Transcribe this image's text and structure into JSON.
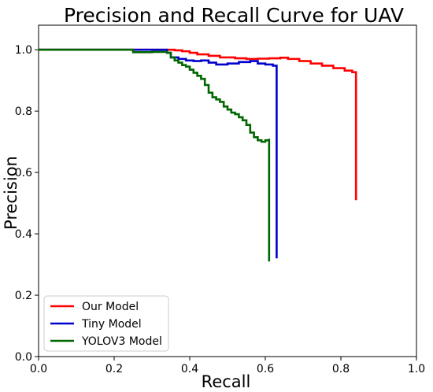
{
  "chart_data": {
    "type": "line",
    "title": "Precision and Recall Curve for UAV",
    "xlabel": "Recall",
    "ylabel": "Precision",
    "xlim": [
      0.0,
      1.0
    ],
    "ylim": [
      0.0,
      1.08
    ],
    "xticks": [
      "0.0",
      "0.2",
      "0.4",
      "0.6",
      "0.8",
      "1.0"
    ],
    "yticks": [
      "0.0",
      "0.2",
      "0.4",
      "0.6",
      "0.8",
      "1.0"
    ],
    "grid": false,
    "legend_position": "lower-left",
    "series": [
      {
        "name": "Our Model",
        "color": "#ff0000",
        "x": [
          0.0,
          0.2,
          0.34,
          0.36,
          0.38,
          0.4,
          0.42,
          0.45,
          0.48,
          0.52,
          0.55,
          0.58,
          0.61,
          0.64,
          0.66,
          0.69,
          0.72,
          0.75,
          0.78,
          0.81,
          0.83,
          0.84,
          0.84
        ],
        "y": [
          1.0,
          1.0,
          1.0,
          0.998,
          0.995,
          0.99,
          0.985,
          0.98,
          0.975,
          0.972,
          0.97,
          0.971,
          0.972,
          0.974,
          0.97,
          0.963,
          0.955,
          0.948,
          0.94,
          0.932,
          0.927,
          0.92,
          0.51
        ]
      },
      {
        "name": "Tiny Model",
        "color": "#0000cc",
        "x": [
          0.0,
          0.2,
          0.25,
          0.3,
          0.34,
          0.35,
          0.37,
          0.39,
          0.41,
          0.43,
          0.45,
          0.47,
          0.5,
          0.53,
          0.56,
          0.58,
          0.6,
          0.62,
          0.63,
          0.63
        ],
        "y": [
          1.0,
          1.0,
          1.0,
          1.0,
          0.99,
          0.975,
          0.97,
          0.965,
          0.963,
          0.965,
          0.958,
          0.952,
          0.955,
          0.96,
          0.963,
          0.955,
          0.952,
          0.948,
          0.945,
          0.32
        ]
      },
      {
        "name": "YOLOV3 Model",
        "color": "#006600",
        "x": [
          0.0,
          0.2,
          0.25,
          0.3,
          0.34,
          0.35,
          0.36,
          0.37,
          0.38,
          0.39,
          0.4,
          0.41,
          0.42,
          0.43,
          0.44,
          0.45,
          0.46,
          0.47,
          0.48,
          0.49,
          0.5,
          0.51,
          0.52,
          0.53,
          0.54,
          0.55,
          0.56,
          0.57,
          0.58,
          0.59,
          0.6,
          0.61,
          0.61
        ],
        "y": [
          1.0,
          1.0,
          0.992,
          0.993,
          0.99,
          0.975,
          0.965,
          0.958,
          0.95,
          0.945,
          0.935,
          0.925,
          0.915,
          0.905,
          0.885,
          0.86,
          0.845,
          0.838,
          0.83,
          0.815,
          0.805,
          0.795,
          0.79,
          0.78,
          0.77,
          0.755,
          0.73,
          0.715,
          0.705,
          0.7,
          0.705,
          0.71,
          0.31
        ]
      }
    ]
  }
}
